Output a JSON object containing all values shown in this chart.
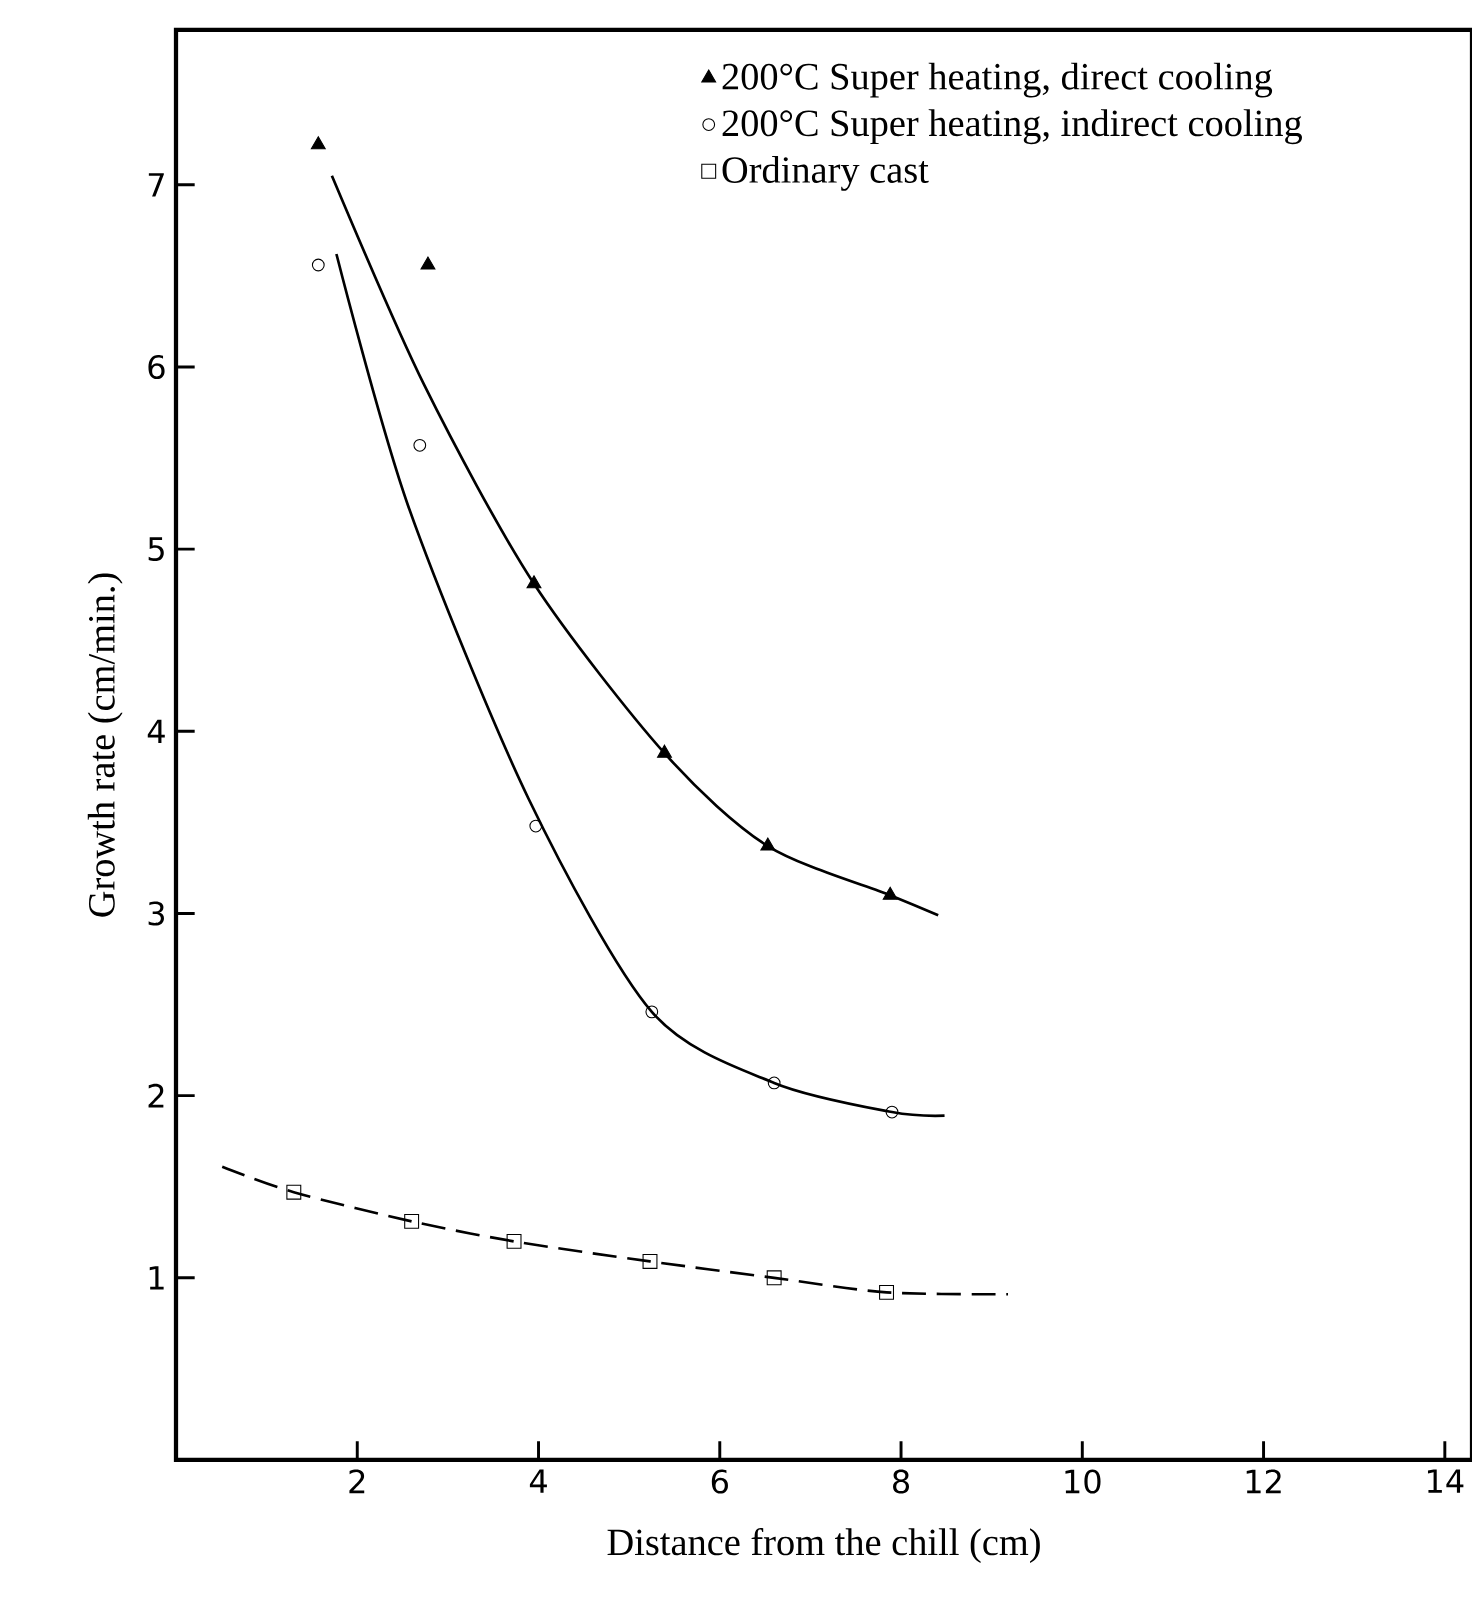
{
  "chart_data": {
    "type": "scatter",
    "xlabel": "Distance from the chill (cm)",
    "ylabel": "Growth rate (cm/min.)",
    "xlim": [
      0,
      14.3
    ],
    "ylim": [
      0,
      7.85
    ],
    "xticks": [
      2,
      4,
      6,
      8,
      10,
      12,
      14
    ],
    "yticks": [
      1,
      2,
      3,
      4,
      5,
      6,
      7
    ],
    "grid": false,
    "legend": "top right",
    "series": [
      {
        "name": "200°C Super heating, direct cooling",
        "color": "#000000",
        "marker": "triangle",
        "x": [
          1.57,
          2.78,
          3.95,
          5.39,
          6.53,
          7.88
        ],
        "values": [
          7.22,
          6.56,
          4.81,
          3.88,
          3.37,
          3.1
        ]
      },
      {
        "name": "200°C Super heating, indirect cooling",
        "color": "#000000",
        "marker": "circle",
        "x": [
          1.57,
          2.69,
          3.97,
          5.25,
          6.6,
          7.9
        ],
        "values": [
          6.56,
          5.57,
          3.48,
          2.46,
          2.07,
          1.91
        ]
      },
      {
        "name": "Ordinary cast",
        "color": "#000000",
        "marker": "square",
        "x": [
          1.3,
          2.6,
          3.73,
          5.23,
          6.6,
          7.84
        ],
        "values": [
          1.47,
          1.31,
          1.2,
          1.09,
          1.0,
          0.92
        ]
      },
      {
        "type": "line",
        "color": "#000000",
        "marker": "none",
        "line_style": "solid",
        "x": [
          1.72,
          2.74,
          3.95,
          5.39,
          6.53,
          7.88,
          8.41
        ],
        "values": [
          7.05,
          5.9,
          4.81,
          3.88,
          3.37,
          3.1,
          2.99
        ]
      },
      {
        "type": "line",
        "color": "#000000",
        "marker": "none",
        "line_style": "solid",
        "x": [
          1.77,
          2.56,
          3.89,
          5.25,
          6.6,
          7.9,
          8.48
        ],
        "values": [
          6.62,
          5.24,
          3.63,
          2.46,
          2.07,
          1.91,
          1.89
        ]
      },
      {
        "type": "line",
        "color": "#000000",
        "marker": "none",
        "line_style": "dashed",
        "x": [
          0.51,
          1.3,
          2.6,
          3.73,
          5.23,
          6.6,
          7.84,
          9.18
        ],
        "values": [
          1.61,
          1.47,
          1.31,
          1.2,
          1.09,
          1.0,
          0.92,
          0.91
        ]
      }
    ]
  }
}
